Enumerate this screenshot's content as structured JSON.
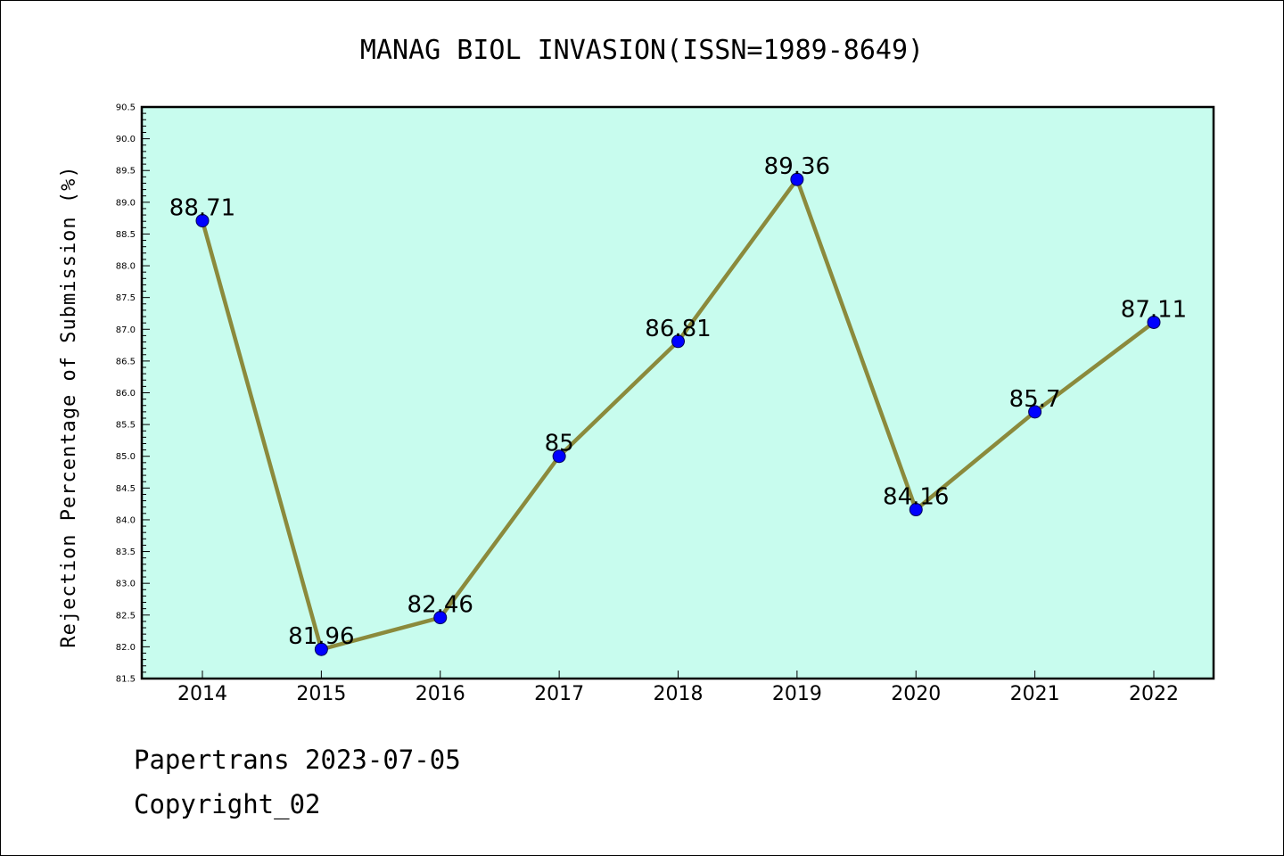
{
  "chart_data": {
    "type": "line",
    "title": "MANAG BIOL INVASION(ISSN=1989-8649)",
    "ylabel": "Rejection Percentage of Submission (%)",
    "xlabel": "",
    "categories": [
      "2014",
      "2015",
      "2016",
      "2017",
      "2018",
      "2019",
      "2020",
      "2021",
      "2022"
    ],
    "values": [
      88.71,
      81.96,
      82.46,
      85,
      86.81,
      89.36,
      84.16,
      85.7,
      87.11
    ],
    "data_labels": [
      "88.71",
      "81.96",
      "82.46",
      "85",
      "86.81",
      "89.36",
      "84.16",
      "85.7",
      "87.11"
    ],
    "ylim": [
      81.5,
      90.5
    ],
    "yticks": [
      "81.5",
      "82.0",
      "82.5",
      "83.0",
      "83.5",
      "84.0",
      "84.5",
      "85.0",
      "85.5",
      "86.0",
      "86.5",
      "87.0",
      "87.5",
      "88.0",
      "88.5",
      "89.0",
      "89.5",
      "90.0",
      "90.5"
    ],
    "grid": false,
    "colors": {
      "plot_background": "#c8fcee",
      "line": "#8b8a3c",
      "marker": "#0000ff"
    }
  },
  "footer": {
    "line1": "Papertrans 2023-07-05",
    "line2": "Copyright_02"
  }
}
